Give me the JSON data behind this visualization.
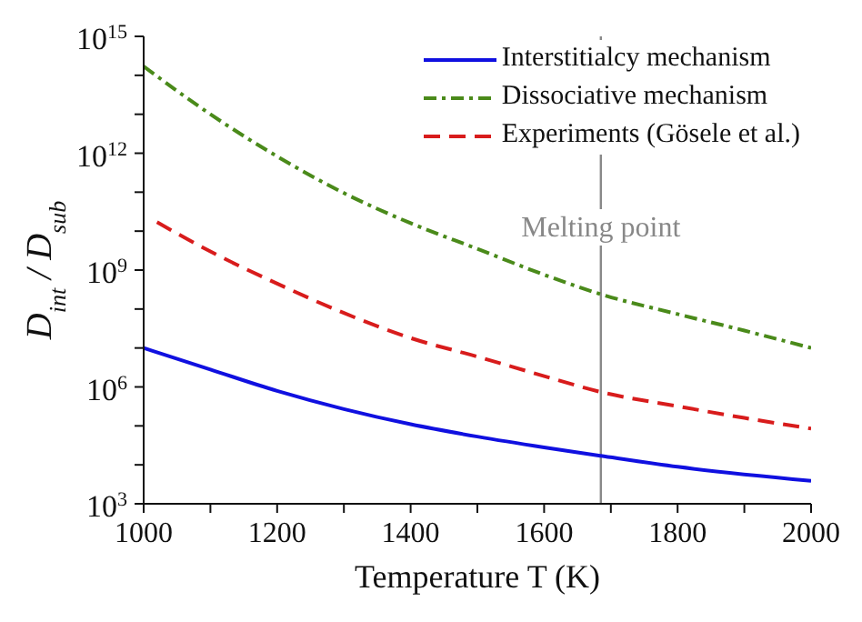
{
  "chart_data": {
    "type": "line",
    "xlabel": "Temperature T (K)",
    "ylabel": "D$_{int}$ / D$_{sub}$",
    "xlim": [
      1000,
      2000
    ],
    "xticks": [
      1000,
      {
        "value": 1100,
        "label": null
      },
      1200,
      {
        "value": 1300,
        "label": null
      },
      1400,
      {
        "value": 1500,
        "label": null
      },
      1600,
      {
        "value": 1700,
        "label": null
      },
      1800,
      {
        "value": 1900,
        "label": null
      },
      2000
    ],
    "ylim": [
      1000,
      1000000000000000
    ],
    "yticks": [
      {
        "value": 1000,
        "label": "10$^{3}$"
      },
      {
        "value": 10000,
        "label": null
      },
      {
        "value": 100000,
        "label": null
      },
      {
        "value": 1000000,
        "label": "10$^{6}$"
      },
      {
        "value": 10000000,
        "label": null
      },
      {
        "value": 100000000,
        "label": null
      },
      {
        "value": 1000000000,
        "label": "10$^{9}$"
      },
      {
        "value": 10000000000,
        "label": null
      },
      {
        "value": 100000000000,
        "label": null
      },
      {
        "value": 1000000000000,
        "label": "10$^{12}$"
      },
      {
        "value": 10000000000000,
        "label": null
      },
      {
        "value": 100000000000000,
        "label": null
      },
      {
        "value": 1000000000000000,
        "label": "10$^{15}$"
      }
    ],
    "log": "y",
    "legend": "top right",
    "series": [
      {
        "name": "Interstitialcy mechanism",
        "color": "#1010e0",
        "line_style": "solid",
        "x": [
          1000,
          1100,
          1200,
          1300,
          1400,
          1500,
          1600,
          1685,
          1800,
          2000
        ],
        "values": [
          10000000.0,
          2800000.0,
          790000.0,
          270000.0,
          110000.0,
          53000.0,
          28000.0,
          17000.0,
          8900.0,
          3900.0
        ]
      },
      {
        "name": "Dissociative mechanism",
        "color": "#4a8a1a",
        "line_style": "dashdot",
        "x": [
          1000,
          1100,
          1200,
          1300,
          1400,
          1500,
          1600,
          1685,
          1800,
          1900,
          2000
        ],
        "values": [
          170000000000000.0,
          10000000000000.0,
          830000000000.0,
          95000000000.0,
          16000000000.0,
          3500000000.0,
          760000000.0,
          240000000.0,
          74000000.0,
          28000000.0,
          10000000.0
        ]
      },
      {
        "name": "Experiments (Gösele et al.)",
        "color": "#d81c1c",
        "line_style": "dashed",
        "x": [
          1020,
          1100,
          1200,
          1300,
          1400,
          1500,
          1600,
          1685,
          1800,
          1900,
          2000
        ],
        "values": [
          17000000000.0,
          3000000000.0,
          450000000.0,
          79000000.0,
          18000000.0,
          6000000.0,
          1900000.0,
          740000.0,
          320000.0,
          160000.0,
          85000.0
        ]
      }
    ],
    "ref_lines": [
      {
        "axis": "x",
        "value": 1685,
        "label": "Melting point",
        "color": "#888888"
      }
    ]
  }
}
